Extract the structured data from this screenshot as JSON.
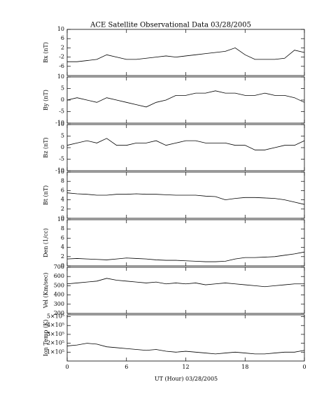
{
  "chart_data": [
    {
      "type": "line",
      "title": "ACE Satellite Observational Data   03/28/2005",
      "ylabel": "Bx (nT)",
      "x": [
        0,
        1,
        2,
        3,
        4,
        5,
        6,
        7,
        8,
        9,
        10,
        11,
        12,
        13,
        14,
        15,
        16,
        17,
        18,
        19,
        20,
        21,
        22,
        23,
        24
      ],
      "values": [
        -4,
        -4,
        -3.5,
        -3,
        -1,
        -2,
        -3,
        -3,
        -2.5,
        -2,
        -1.5,
        -2,
        -1.5,
        -1,
        -0.5,
        0,
        0.5,
        2,
        -1,
        -3,
        -3,
        -3,
        -2.5,
        1,
        0
      ],
      "color": "#000000",
      "xlim": [
        0,
        24
      ],
      "ylim": [
        -10,
        10
      ],
      "yticks": [
        -6,
        -2,
        2,
        6,
        10
      ]
    },
    {
      "type": "line",
      "ylabel": "By (nT)",
      "x": [
        0,
        1,
        2,
        3,
        4,
        5,
        6,
        7,
        8,
        9,
        10,
        11,
        12,
        13,
        14,
        15,
        16,
        17,
        18,
        19,
        20,
        21,
        22,
        23,
        24
      ],
      "values": [
        0,
        1,
        0,
        -1,
        1,
        0,
        -1,
        -2,
        -3,
        -1,
        0,
        2,
        2,
        3,
        3,
        4,
        3,
        3,
        2,
        2,
        3,
        2,
        2,
        1,
        -1
      ],
      "color": "#000000",
      "xlim": [
        0,
        24
      ],
      "ylim": [
        -10,
        10
      ],
      "yticks": [
        -10,
        -5,
        0,
        5,
        10
      ]
    },
    {
      "type": "line",
      "ylabel": "Bz (nT)",
      "x": [
        0,
        1,
        2,
        3,
        4,
        5,
        6,
        7,
        8,
        9,
        10,
        11,
        12,
        13,
        14,
        15,
        16,
        17,
        18,
        19,
        20,
        21,
        22,
        23,
        24
      ],
      "values": [
        1,
        2,
        3,
        2,
        4,
        1,
        1,
        2,
        2,
        3,
        1,
        2,
        3,
        3,
        2,
        2,
        2,
        1,
        1,
        -1,
        -1,
        0,
        1,
        1,
        3
      ],
      "color": "#000000",
      "xlim": [
        0,
        24
      ],
      "ylim": [
        -10,
        10
      ],
      "yticks": [
        -10,
        -5,
        0,
        5,
        10
      ]
    },
    {
      "type": "line",
      "ylabel": "Bt (nT)",
      "x": [
        0,
        1,
        2,
        3,
        4,
        5,
        6,
        7,
        8,
        9,
        10,
        11,
        12,
        13,
        14,
        15,
        16,
        17,
        18,
        19,
        20,
        21,
        22,
        23,
        24
      ],
      "values": [
        5.5,
        5.3,
        5.2,
        5,
        5,
        5.2,
        5.2,
        5.3,
        5.2,
        5.2,
        5.1,
        5,
        5,
        5,
        4.8,
        4.7,
        4,
        4.3,
        4.5,
        4.5,
        4.4,
        4.3,
        4,
        3.5,
        3
      ],
      "color": "#000000",
      "xlim": [
        0,
        24
      ],
      "ylim": [
        0,
        10
      ],
      "yticks": [
        0,
        2,
        4,
        6,
        8,
        10
      ]
    },
    {
      "type": "line",
      "ylabel": "Den (1/cc)",
      "x": [
        0,
        1,
        2,
        3,
        4,
        5,
        6,
        7,
        8,
        9,
        10,
        11,
        12,
        13,
        14,
        15,
        16,
        17,
        18,
        19,
        20,
        21,
        22,
        23,
        24
      ],
      "values": [
        1.5,
        1.6,
        1.5,
        1.4,
        1.3,
        1.5,
        1.7,
        1.6,
        1.5,
        1.3,
        1.2,
        1.2,
        1.1,
        1.0,
        0.9,
        0.9,
        1,
        1.5,
        1.8,
        1.8,
        1.9,
        2.0,
        2.3,
        2.6,
        3
      ],
      "color": "#000000",
      "xlim": [
        0,
        24
      ],
      "ylim": [
        0,
        10
      ],
      "yticks": [
        0,
        2,
        4,
        6,
        8,
        10
      ]
    },
    {
      "type": "line",
      "ylabel": "Vel (Km/sec)",
      "x": [
        0,
        1,
        2,
        3,
        4,
        5,
        6,
        7,
        8,
        9,
        10,
        11,
        12,
        13,
        14,
        15,
        16,
        17,
        18,
        19,
        20,
        21,
        22,
        23,
        24
      ],
      "values": [
        520,
        530,
        540,
        550,
        580,
        560,
        550,
        540,
        530,
        540,
        520,
        530,
        520,
        530,
        510,
        520,
        530,
        520,
        510,
        500,
        490,
        500,
        510,
        520,
        520
      ],
      "color": "#000000",
      "xlim": [
        0,
        24
      ],
      "ylim": [
        200,
        700
      ],
      "yticks": [
        200,
        300,
        400,
        500,
        600,
        700
      ]
    },
    {
      "type": "line",
      "ylabel": "Ion Temp (K)",
      "xlabel": "UT (Hour)   03/28/2005",
      "x": [
        0,
        1,
        2,
        3,
        4,
        5,
        6,
        7,
        8,
        9,
        10,
        11,
        12,
        13,
        14,
        15,
        16,
        17,
        18,
        19,
        20,
        21,
        22,
        23,
        24
      ],
      "values": [
        170000,
        180000,
        200000,
        190000,
        160000,
        150000,
        140000,
        130000,
        120000,
        130000,
        110000,
        100000,
        110000,
        100000,
        90000,
        80000,
        90000,
        100000,
        90000,
        80000,
        80000,
        90000,
        100000,
        100000,
        120000
      ],
      "color": "#000000",
      "xlim": [
        0,
        24
      ],
      "ylim": [
        0,
        520000
      ],
      "yticks": [
        {
          "value": 100000,
          "label": "1×10⁵"
        },
        {
          "value": 200000,
          "label": "2×10⁵"
        },
        {
          "value": 300000,
          "label": "3×10⁵"
        },
        {
          "value": 400000,
          "label": "4×10⁵"
        },
        {
          "value": 500000,
          "label": "5×10⁵"
        }
      ],
      "xticks": [
        0,
        6,
        12,
        18,
        {
          "value": 24,
          "label": "0"
        }
      ]
    }
  ]
}
